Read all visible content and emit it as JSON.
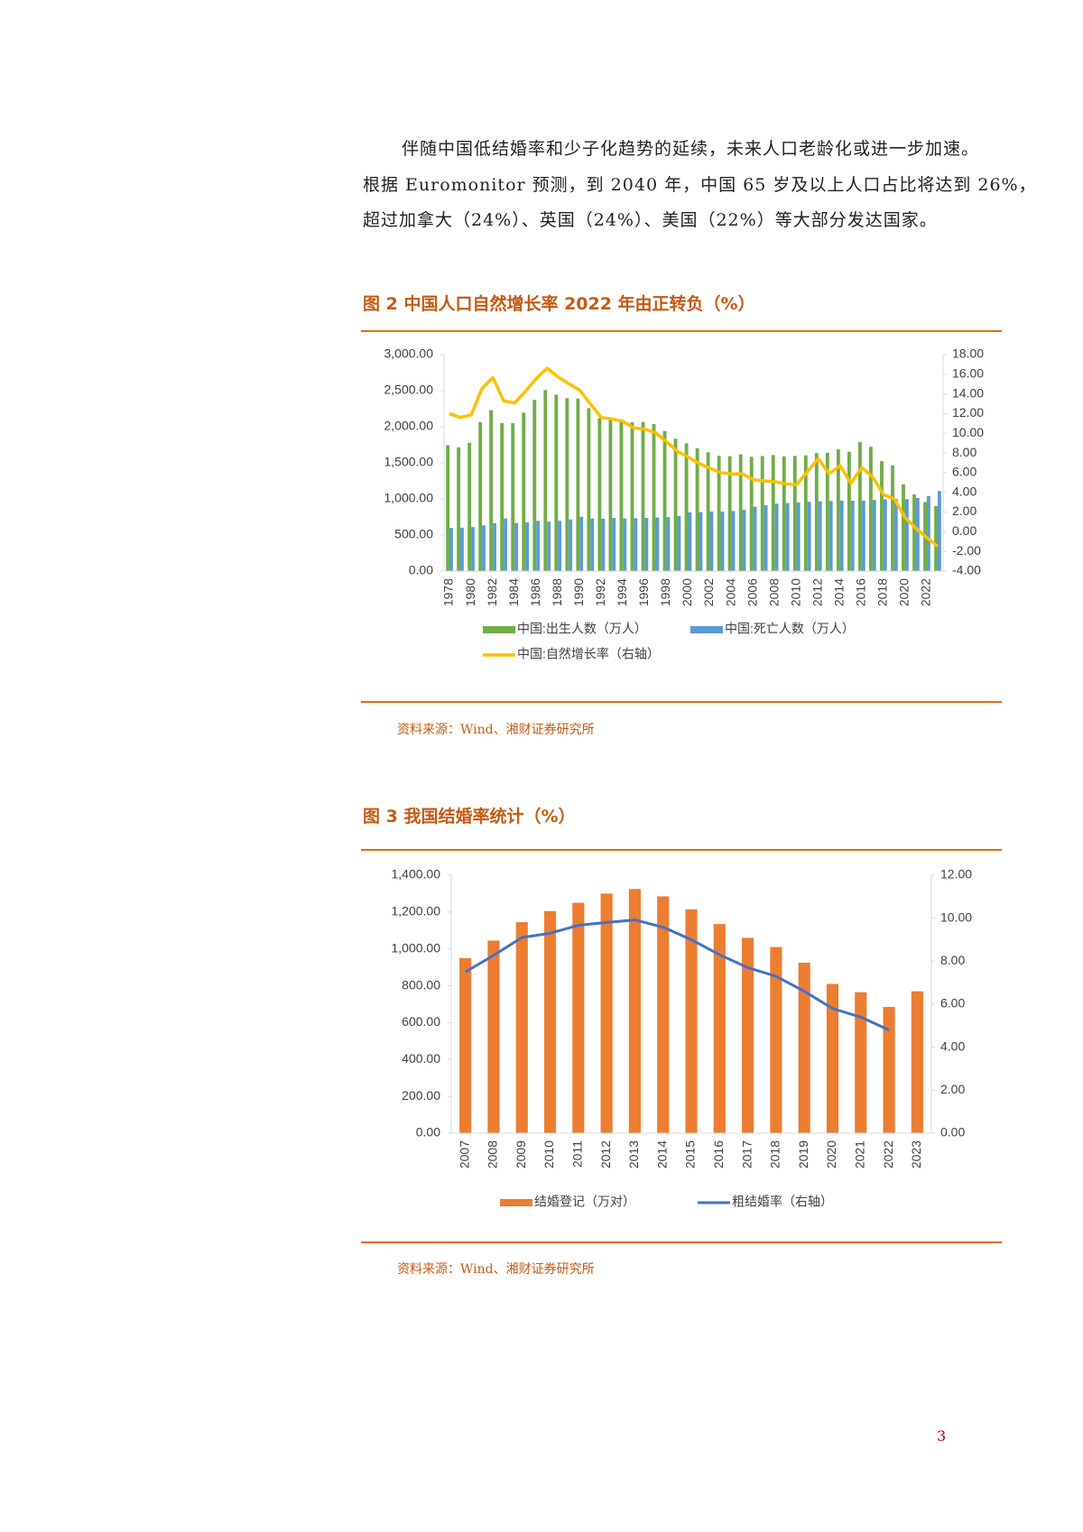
{
  "paragraph": [
    "伴随中国低结婚率和少子化趋势的延续，未来人口老龄化或进一步加速。",
    "根据 Euromonitor 预测，到 2040 年，中国 65 岁及以上人口占比将达到 26%，",
    "超过加拿大（24%）、英国（24%）、美国（22%）等大部分发达国家。"
  ],
  "page_number": "3",
  "chart_data": [
    {
      "type": "combo",
      "title": "图 2 中国人口自然增长率 2022 年由正转负（%）",
      "source": "资料来源：Wind、湘财证券研究所",
      "categories": [
        "1978",
        null,
        "1980",
        null,
        "1982",
        null,
        "1984",
        null,
        "1986",
        null,
        "1988",
        null,
        "1990",
        null,
        "1992",
        null,
        "1994",
        null,
        "1996",
        null,
        "1998",
        null,
        "2000",
        null,
        "2002",
        null,
        "2004",
        null,
        "2006",
        null,
        "2008",
        null,
        "2010",
        null,
        "2012",
        null,
        "2014",
        null,
        "2016",
        null,
        "2018",
        null,
        "2020",
        null,
        "2022",
        null
      ],
      "series": [
        {
          "name": "中国:出生人数（万人）",
          "type": "bar",
          "color": "#70ad47",
          "values": [
            1745,
            1715,
            1776,
            2064,
            2230,
            2052,
            2050,
            2196,
            2374,
            2508,
            2445,
            2396,
            2391,
            2258,
            2119,
            2126,
            2104,
            2063,
            2067,
            2038,
            1942,
            1834,
            1771,
            1702,
            1647,
            1599,
            1593,
            1617,
            1584,
            1594,
            1608,
            1591,
            1596,
            1604,
            1635,
            1640,
            1687,
            1655,
            1786,
            1723,
            1523,
            1465,
            1202,
            1062,
            956,
            902
          ]
        },
        {
          "name": "中国:死亡人数（万人）",
          "type": "bar",
          "color": "#5b9bd5",
          "values": [
            599,
            602,
            610,
            633,
            665,
            730,
            667,
            677,
            697,
            686,
            697,
            716,
            753,
            728,
            727,
            736,
            729,
            733,
            736,
            742,
            749,
            763,
            814,
            818,
            826,
            825,
            832,
            849,
            892,
            913,
            935,
            943,
            951,
            960,
            966,
            972,
            977,
            975,
            977,
            986,
            993,
            998,
            998,
            1014,
            1041,
            1110
          ]
        },
        {
          "name": "中国:自然增长率（右轴）",
          "type": "line",
          "axis": "y2",
          "color": "#ffc000",
          "values": [
            12.0,
            11.61,
            11.87,
            14.55,
            15.68,
            13.29,
            13.08,
            14.26,
            15.57,
            16.61,
            15.73,
            15.04,
            14.39,
            12.98,
            11.6,
            11.45,
            11.21,
            10.55,
            10.42,
            10.06,
            9.14,
            8.18,
            7.58,
            6.95,
            6.45,
            6.01,
            5.87,
            5.89,
            5.28,
            5.17,
            5.08,
            4.87,
            4.79,
            6.13,
            7.43,
            5.9,
            6.71,
            4.93,
            6.53,
            5.58,
            3.78,
            3.32,
            1.45,
            0.34,
            -0.6,
            -1.48
          ]
        }
      ],
      "ylim": [
        0,
        3000
      ],
      "yticks": [
        {
          "value": 0,
          "label": "0.00"
        },
        {
          "value": 500,
          "label": "500.00"
        },
        {
          "value": 1000,
          "label": "1,000.00"
        },
        {
          "value": 1500,
          "label": "1,500.00"
        },
        {
          "value": 2000,
          "label": "2,000.00"
        },
        {
          "value": 2500,
          "label": "2,500.00"
        },
        {
          "value": 3000,
          "label": "3,000.00"
        }
      ],
      "y2lim": [
        -4,
        18
      ],
      "y2ticks": [
        {
          "value": -4,
          "label": "-4.00"
        },
        {
          "value": -2,
          "label": "-2.00"
        },
        {
          "value": 0,
          "label": "0.00"
        },
        {
          "value": 2,
          "label": "2.00"
        },
        {
          "value": 4,
          "label": "4.00"
        },
        {
          "value": 6,
          "label": "6.00"
        },
        {
          "value": 8,
          "label": "8.00"
        },
        {
          "value": 10,
          "label": "10.00"
        },
        {
          "value": 12,
          "label": "12.00"
        },
        {
          "value": 14,
          "label": "14.00"
        },
        {
          "value": 16,
          "label": "16.00"
        },
        {
          "value": 18,
          "label": "18.00"
        }
      ],
      "grid": false
    },
    {
      "type": "combo",
      "title": "图 3 我国结婚率统计（%）",
      "source": "资料来源：Wind、湘财证券研究所",
      "categories": [
        "2007",
        "2008",
        "2009",
        "2010",
        "2011",
        "2012",
        "2013",
        "2014",
        "2015",
        "2016",
        "2017",
        "2018",
        "2019",
        "2020",
        "2021",
        "2022",
        "2023"
      ],
      "series": [
        {
          "name": "结婚登记（万对）",
          "type": "bar",
          "color": "#ed7d31",
          "values": [
            950,
            1045,
            1145,
            1205,
            1250,
            1300,
            1325,
            1285,
            1215,
            1135,
            1060,
            1010,
            925,
            810,
            765,
            685,
            770
          ]
        },
        {
          "name": "粗结婚率（右轴）",
          "type": "line",
          "axis": "y2",
          "color": "#4472c4",
          "values": [
            7.5,
            8.27,
            9.1,
            9.3,
            9.67,
            9.8,
            9.92,
            9.58,
            9.0,
            8.3,
            7.7,
            7.3,
            6.6,
            5.8,
            5.4,
            4.8,
            null
          ]
        }
      ],
      "ylim": [
        0,
        1400
      ],
      "yticks": [
        {
          "value": 0,
          "label": "0.00"
        },
        {
          "value": 200,
          "label": "200.00"
        },
        {
          "value": 400,
          "label": "400.00"
        },
        {
          "value": 600,
          "label": "600.00"
        },
        {
          "value": 800,
          "label": "800.00"
        },
        {
          "value": 1000,
          "label": "1,000.00"
        },
        {
          "value": 1200,
          "label": "1,200.00"
        },
        {
          "value": 1400,
          "label": "1,400.00"
        }
      ],
      "y2lim": [
        0,
        12
      ],
      "y2ticks": [
        {
          "value": 0,
          "label": "0.00"
        },
        {
          "value": 2,
          "label": "2.00"
        },
        {
          "value": 4,
          "label": "4.00"
        },
        {
          "value": 6,
          "label": "6.00"
        },
        {
          "value": 8,
          "label": "8.00"
        },
        {
          "value": 10,
          "label": "10.00"
        },
        {
          "value": 12,
          "label": "12.00"
        }
      ],
      "grid": false
    }
  ]
}
